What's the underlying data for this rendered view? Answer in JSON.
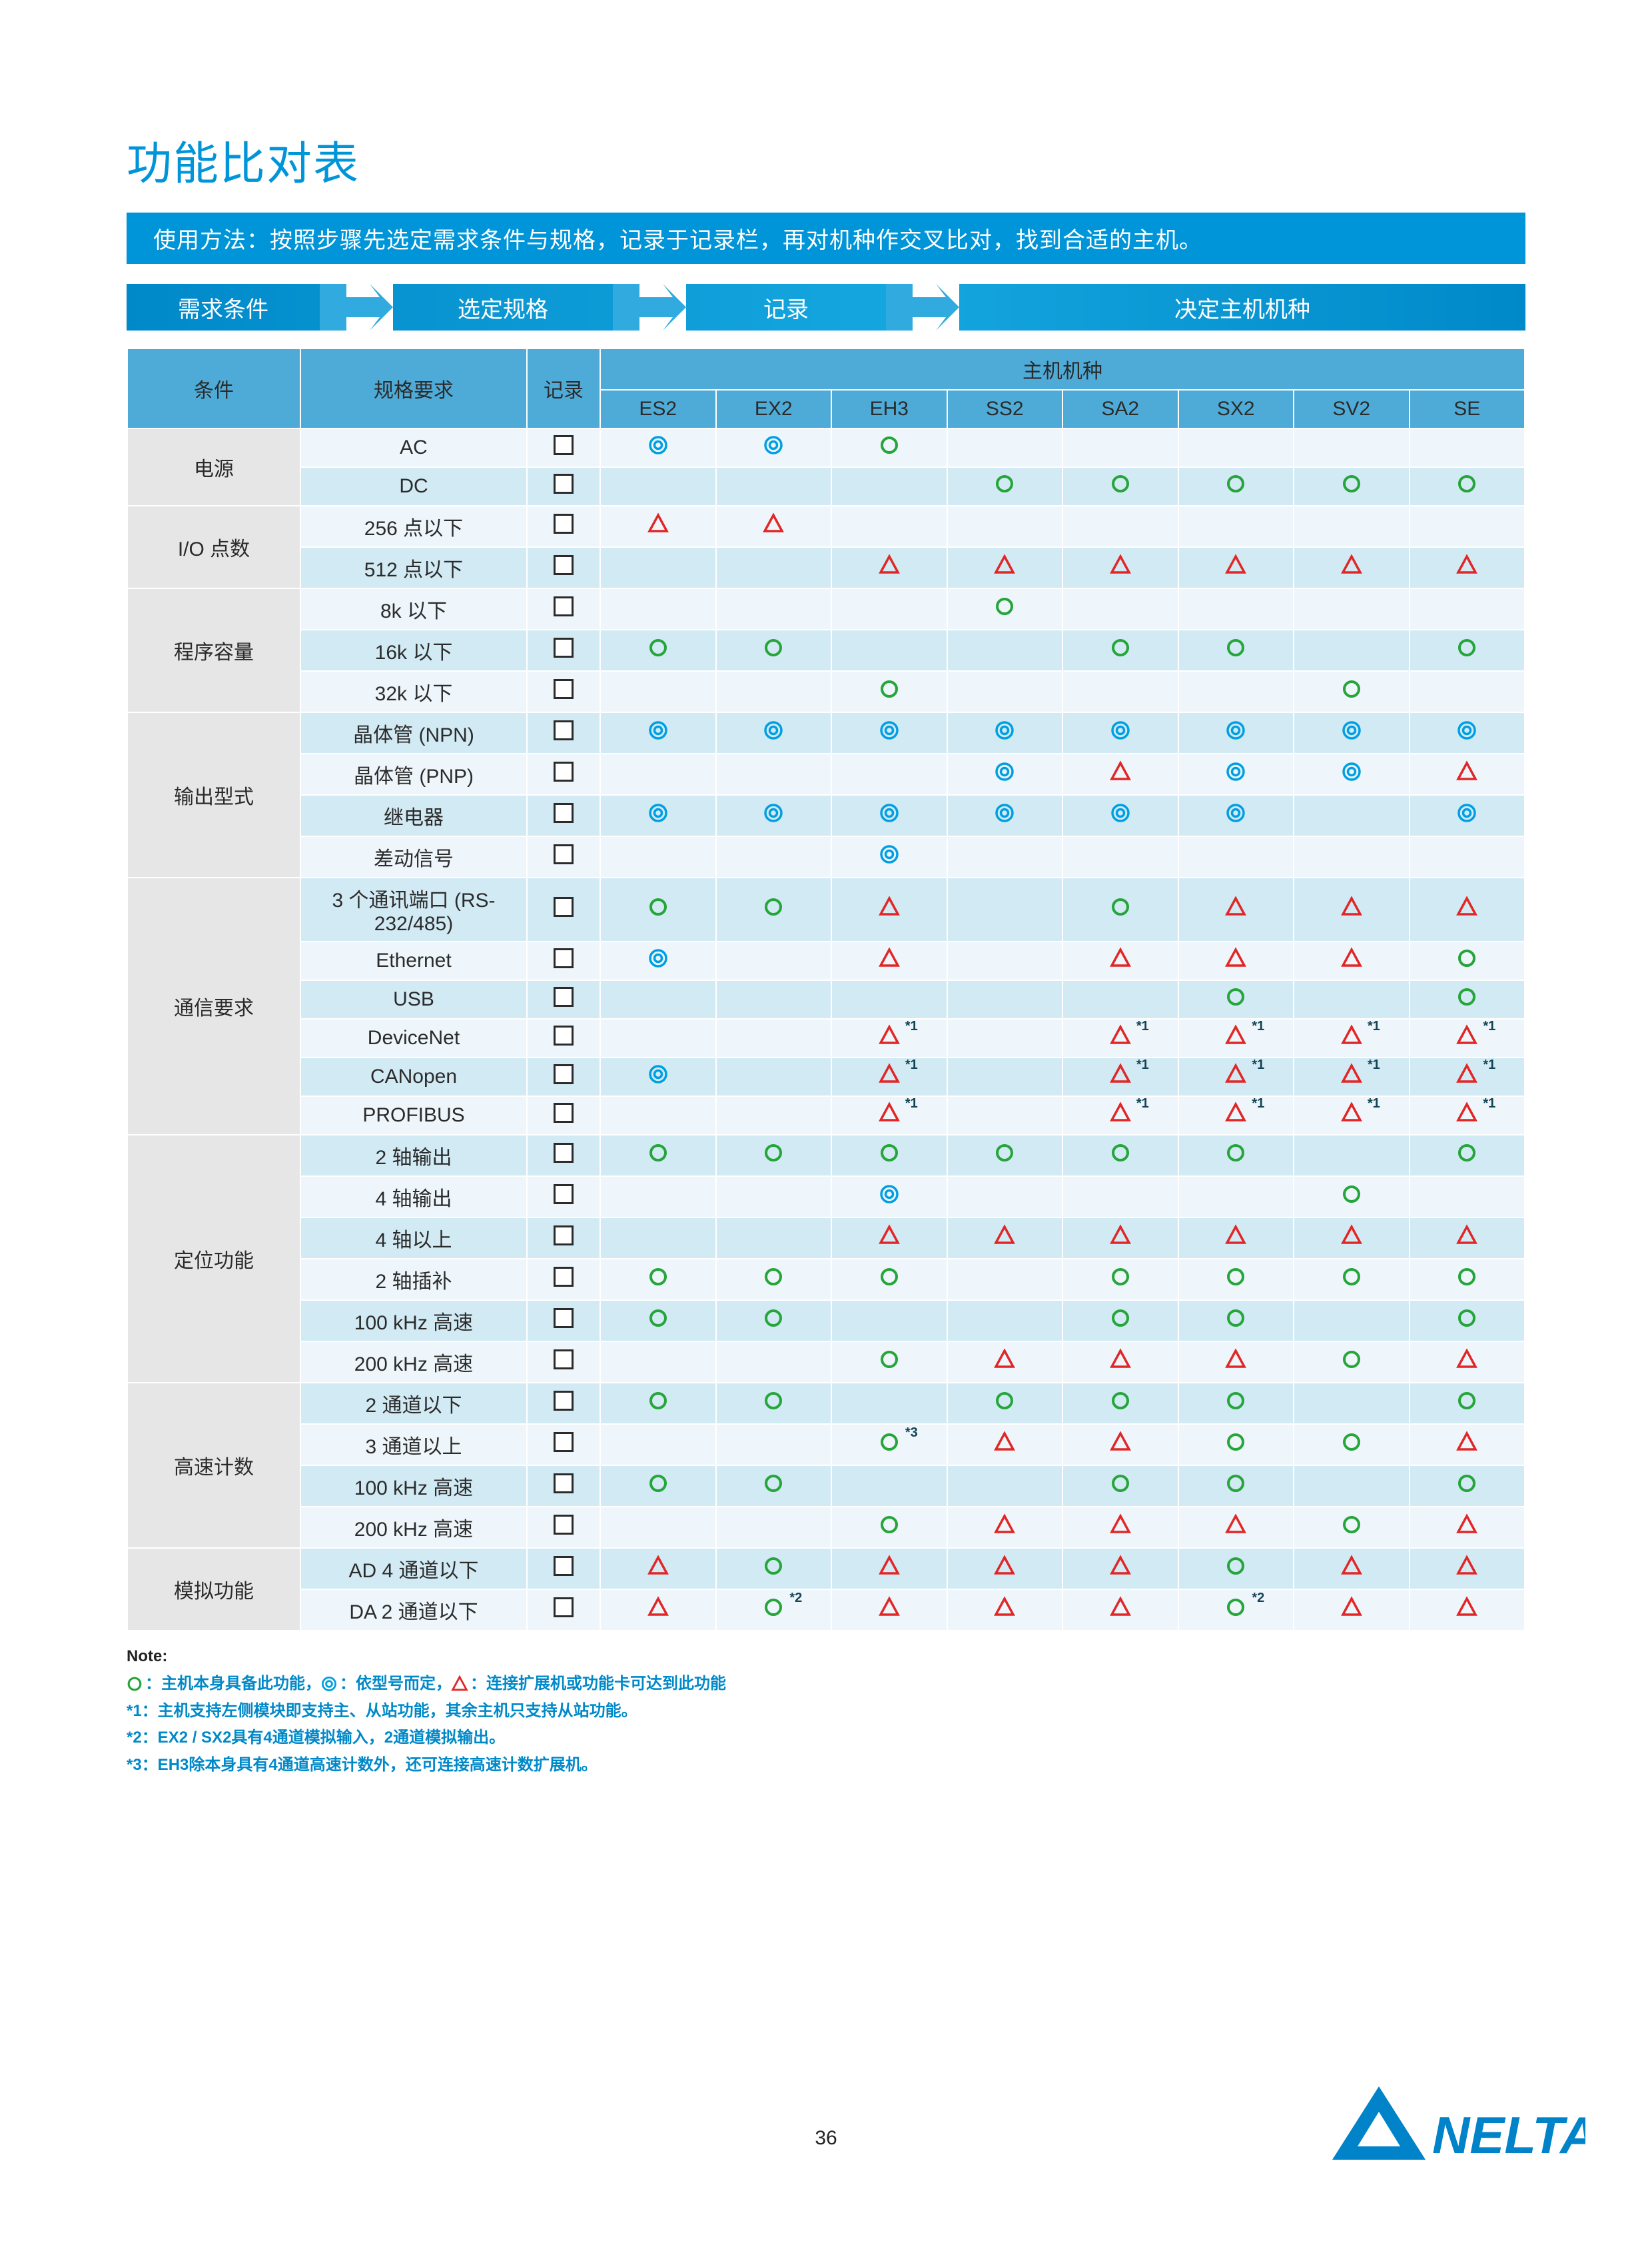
{
  "title": "功能比对表",
  "usage": "使用方法：按照步骤先选定需求条件与规格，记录于记录栏，再对机种作交叉比对，找到合适的主机。",
  "steps": [
    "需求条件",
    "选定规格",
    "记录",
    "决定主机机种"
  ],
  "colors": {
    "accent": "#0095d9",
    "header_bg": "#4eabd8",
    "row_even": "#eef6fb",
    "row_odd": "#d2eaf4",
    "cond_bg": "#e6e6e6",
    "green": "#26a53a",
    "blue": "#009fe2",
    "red": "#e22626",
    "text": "#2b2b2b"
  },
  "headers": {
    "cond": "条件",
    "spec": "规格要求",
    "rec": "记录",
    "model_group": "主机机种",
    "models": [
      "ES2",
      "EX2",
      "EH3",
      "SS2",
      "SA2",
      "SX2",
      "SV2",
      "SE"
    ]
  },
  "groups": [
    {
      "label": "电源",
      "rows": [
        {
          "spec": "AC",
          "cells": [
            "dbl",
            "dbl",
            "grn",
            "",
            "",
            "",
            "",
            ""
          ]
        },
        {
          "spec": "DC",
          "cells": [
            "",
            "",
            "",
            "grn",
            "grn",
            "grn",
            "grn",
            "grn"
          ]
        }
      ]
    },
    {
      "label": "I/O 点数",
      "rows": [
        {
          "spec": "256 点以下",
          "cells": [
            "tri",
            "tri",
            "",
            "",
            "",
            "",
            "",
            ""
          ]
        },
        {
          "spec": "512 点以下",
          "cells": [
            "",
            "",
            "tri",
            "tri",
            "tri",
            "tri",
            "tri",
            "tri"
          ]
        }
      ]
    },
    {
      "label": "程序容量",
      "rows": [
        {
          "spec": "8k 以下",
          "cells": [
            "",
            "",
            "",
            "grn",
            "",
            "",
            "",
            ""
          ]
        },
        {
          "spec": "16k 以下",
          "cells": [
            "grn",
            "grn",
            "",
            "",
            "grn",
            "grn",
            "",
            "grn"
          ]
        },
        {
          "spec": "32k 以下",
          "cells": [
            "",
            "",
            "grn",
            "",
            "",
            "",
            "grn",
            ""
          ]
        }
      ]
    },
    {
      "label": "输出型式",
      "rows": [
        {
          "spec": "晶体管 (NPN)",
          "cells": [
            "dbl",
            "dbl",
            "dbl",
            "dbl",
            "dbl",
            "dbl",
            "dbl",
            "dbl"
          ]
        },
        {
          "spec": "晶体管 (PNP)",
          "cells": [
            "",
            "",
            "",
            "dbl",
            "tri",
            "dbl",
            "dbl",
            "tri"
          ]
        },
        {
          "spec": "继电器",
          "cells": [
            "dbl",
            "dbl",
            "dbl",
            "dbl",
            "dbl",
            "dbl",
            "",
            "dbl"
          ]
        },
        {
          "spec": "差动信号",
          "cells": [
            "",
            "",
            "dbl",
            "",
            "",
            "",
            "",
            ""
          ]
        }
      ]
    },
    {
      "label": "通信要求",
      "rows": [
        {
          "spec": "3 个通讯端口 (RS-232/485)",
          "cells": [
            "grn",
            "grn",
            "tri",
            "",
            "grn",
            "tri",
            "tri",
            "tri"
          ]
        },
        {
          "spec": "Ethernet",
          "cells": [
            "dbl",
            "",
            "tri",
            "",
            "tri",
            "tri",
            "tri",
            "grn"
          ]
        },
        {
          "spec": "USB",
          "cells": [
            "",
            "",
            "",
            "",
            "",
            "grn",
            "",
            "grn"
          ]
        },
        {
          "spec": "DeviceNet",
          "cells": [
            "",
            "",
            "tri*1",
            "",
            "tri*1",
            "tri*1",
            "tri*1",
            "tri*1"
          ]
        },
        {
          "spec": "CANopen",
          "cells": [
            "dbl",
            "",
            "tri*1",
            "",
            "tri*1",
            "tri*1",
            "tri*1",
            "tri*1"
          ]
        },
        {
          "spec": "PROFIBUS",
          "cells": [
            "",
            "",
            "tri*1",
            "",
            "tri*1",
            "tri*1",
            "tri*1",
            "tri*1"
          ]
        }
      ]
    },
    {
      "label": "定位功能",
      "rows": [
        {
          "spec": "2 轴输出",
          "cells": [
            "grn",
            "grn",
            "grn",
            "grn",
            "grn",
            "grn",
            "",
            "grn"
          ]
        },
        {
          "spec": "4 轴输出",
          "cells": [
            "",
            "",
            "dbl",
            "",
            "",
            "",
            "grn",
            ""
          ]
        },
        {
          "spec": "4 轴以上",
          "cells": [
            "",
            "",
            "tri",
            "tri",
            "tri",
            "tri",
            "tri",
            "tri"
          ]
        },
        {
          "spec": "2 轴插补",
          "cells": [
            "grn",
            "grn",
            "grn",
            "",
            "grn",
            "grn",
            "grn",
            "grn"
          ]
        },
        {
          "spec": "100 kHz 高速",
          "cells": [
            "grn",
            "grn",
            "",
            "",
            "grn",
            "grn",
            "",
            "grn"
          ]
        },
        {
          "spec": "200 kHz 高速",
          "cells": [
            "",
            "",
            "grn",
            "tri",
            "tri",
            "tri",
            "grn",
            "tri"
          ]
        }
      ]
    },
    {
      "label": "高速计数",
      "rows": [
        {
          "spec": "2 通道以下",
          "cells": [
            "grn",
            "grn",
            "",
            "grn",
            "grn",
            "grn",
            "",
            "grn"
          ]
        },
        {
          "spec": "3 通道以上",
          "cells": [
            "",
            "",
            "grn*3",
            "tri",
            "tri",
            "grn",
            "grn",
            "tri"
          ]
        },
        {
          "spec": "100 kHz 高速",
          "cells": [
            "grn",
            "grn",
            "",
            "",
            "grn",
            "grn",
            "",
            "grn"
          ]
        },
        {
          "spec": "200 kHz 高速",
          "cells": [
            "",
            "",
            "grn",
            "tri",
            "tri",
            "tri",
            "grn",
            "tri"
          ]
        }
      ]
    },
    {
      "label": "模拟功能",
      "rows": [
        {
          "spec": "AD 4 通道以下",
          "cells": [
            "tri",
            "grn",
            "tri",
            "tri",
            "tri",
            "grn",
            "tri",
            "tri"
          ]
        },
        {
          "spec": "DA 2 通道以下",
          "cells": [
            "tri",
            "grn*2",
            "tri",
            "tri",
            "tri",
            "grn*2",
            "tri",
            "tri"
          ]
        }
      ]
    }
  ],
  "notes": {
    "heading": "Note:",
    "legend": [
      {
        "sym": "grn",
        "text": "：主机本身具备此功能，"
      },
      {
        "sym": "dbl",
        "text": "：依型号而定，"
      },
      {
        "sym": "tri",
        "text": "：连接扩展机或功能卡可达到此功能"
      }
    ],
    "lines": [
      "*1：主机支持左侧模块即支持主、从站功能，其余主机只支持从站功能。",
      "*2：EX2 / SX2具有4通道模拟输入，2通道模拟输出。",
      "*3：EH3除本身具有4通道高速计数外，还可连接高速计数扩展机。"
    ]
  },
  "page_number": "36",
  "logo_text": "NELTA"
}
